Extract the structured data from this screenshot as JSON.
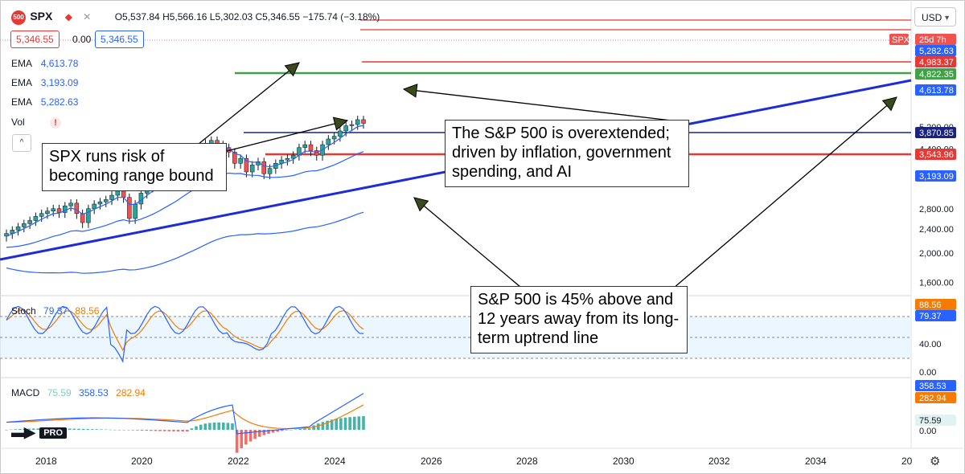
{
  "header": {
    "badge": "500",
    "symbol": "SPX",
    "ohlc": "O5,537.84 H5,566.16 L5,302.03 C5,346.55 −175.74 (−3.18%)",
    "price_a": "5,346.55",
    "spread": "0.00",
    "price_b": "5,346.55",
    "currency": "USD"
  },
  "indicators": [
    {
      "label": "EMA",
      "value": "4,613.78"
    },
    {
      "label": "EMA",
      "value": "3,193.09"
    },
    {
      "label": "EMA",
      "value": "5,282.63"
    }
  ],
  "vol_label": "Vol",
  "vol_warn": "!",
  "collapse_icon": "^",
  "stoch": {
    "label": "Stoch",
    "k": "79.37",
    "d": "88.56"
  },
  "macd": {
    "label": "MACD",
    "hist": "75.59",
    "macd": "358.53",
    "signal": "282.94"
  },
  "logo": "PRO",
  "annotations": {
    "left": "SPX runs risk of becoming range bound",
    "right": "The S&P 500 is overextended; driven by inflation, government spending, and AI",
    "bottom": "S&P 500 is 45% above and 12 years away from its long-term uptrend line"
  },
  "price_tags": [
    {
      "text": "SPX",
      "color": "#ef5350"
    },
    {
      "text": "25d 7h",
      "color": "#ef5350"
    },
    {
      "text": "5,282.63",
      "color": "#2962ff"
    },
    {
      "text": "4,983.37",
      "color": "#e53935"
    },
    {
      "text": "4,822.35",
      "color": "#43a047"
    },
    {
      "text": "4,613.78",
      "color": "#2962ff"
    },
    {
      "text": "3,870.85",
      "color": "#1a237e"
    },
    {
      "text": "3,543.96",
      "color": "#e53935"
    },
    {
      "text": "3,193.09",
      "color": "#2962ff"
    },
    {
      "text": "88.56",
      "color": "#f57c00"
    },
    {
      "text": "79.37",
      "color": "#2962ff"
    },
    {
      "text": "358.53",
      "color": "#2962ff"
    },
    {
      "text": "282.94",
      "color": "#f57c00"
    },
    {
      "text": "75.59",
      "color": "#26a69a"
    }
  ],
  "chart_data": {
    "type": "candlestick",
    "x_ticks": [
      "2018",
      "2020",
      "2022",
      "2024",
      "2026",
      "2028",
      "2030",
      "2032",
      "2034",
      "20"
    ],
    "y_ticks": [
      "5,200.00",
      "4,400.00",
      "2,800.00",
      "2,400.00",
      "2,000.00",
      "1,600.00"
    ],
    "stoch_ticks": [
      "40.00",
      "0.00"
    ],
    "macd_ticks": [
      "0.00"
    ],
    "horizontal_levels": [
      {
        "value": 4983.37,
        "color": "#e53935"
      },
      {
        "value": 4822.35,
        "color": "#43a047"
      },
      {
        "value": 3870.85,
        "color": "#1a237e"
      },
      {
        "value": 3543.96,
        "color": "#e53935"
      }
    ],
    "trendline": {
      "color": "#1e2bd6",
      "from": [
        2017.8,
        1900
      ],
      "to": [
        2035.6,
        4680
      ]
    },
    "ema_series": [
      {
        "name": "EMA",
        "value": 5282.63,
        "color": "#2962ff"
      },
      {
        "name": "EMA",
        "value": 4613.78,
        "color": "#2962ff"
      },
      {
        "name": "EMA",
        "value": 3193.09,
        "color": "#2962ff"
      }
    ],
    "last": {
      "open": 5537.84,
      "high": 5566.16,
      "low": 5302.03,
      "close": 5346.55,
      "change": -175.74,
      "change_pct": -3.18
    },
    "colors": {
      "up": "#26a69a",
      "down": "#ef5350",
      "ema": "#2962ff",
      "stoch_d": "#f57c00",
      "macd": "#2962ff",
      "signal": "#f57c00"
    }
  }
}
